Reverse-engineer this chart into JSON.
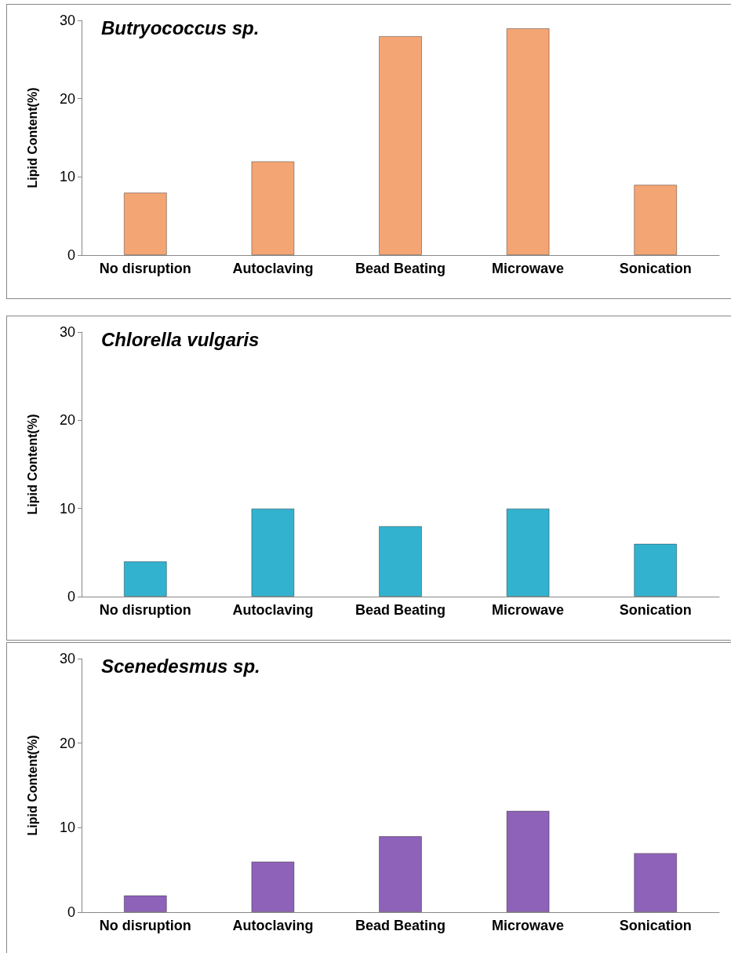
{
  "chart_data": [
    {
      "type": "bar",
      "title": "Butryococcus sp.",
      "ylabel": "Lipid Content(%)",
      "categories": [
        "No disruption",
        "Autoclaving",
        "Bead Beating",
        "Microwave",
        "Sonication"
      ],
      "values": [
        8,
        12,
        28,
        29,
        9
      ],
      "color": "#f4a574",
      "ylim": [
        0,
        30
      ],
      "yticks": [
        0,
        10,
        20,
        30
      ],
      "grid": false
    },
    {
      "type": "bar",
      "title": "Chlorella vulgaris",
      "ylabel": "Lipid Content(%)",
      "categories": [
        "No disruption",
        "Autoclaving",
        "Bead Beating",
        "Microwave",
        "Sonication"
      ],
      "values": [
        4,
        10,
        8,
        10,
        6
      ],
      "color": "#33b2cf",
      "ylim": [
        0,
        30
      ],
      "yticks": [
        0,
        10,
        20,
        30
      ],
      "grid": false
    },
    {
      "type": "bar",
      "title": "Scenedesmus sp.",
      "ylabel": "Lipid Content(%)",
      "categories": [
        "No disruption",
        "Autoclaving",
        "Bead Beating",
        "Microwave",
        "Sonication"
      ],
      "values": [
        2,
        6,
        9,
        12,
        7
      ],
      "color": "#8d62b8",
      "ylim": [
        0,
        30
      ],
      "yticks": [
        0,
        10,
        20,
        30
      ],
      "grid": false
    }
  ]
}
